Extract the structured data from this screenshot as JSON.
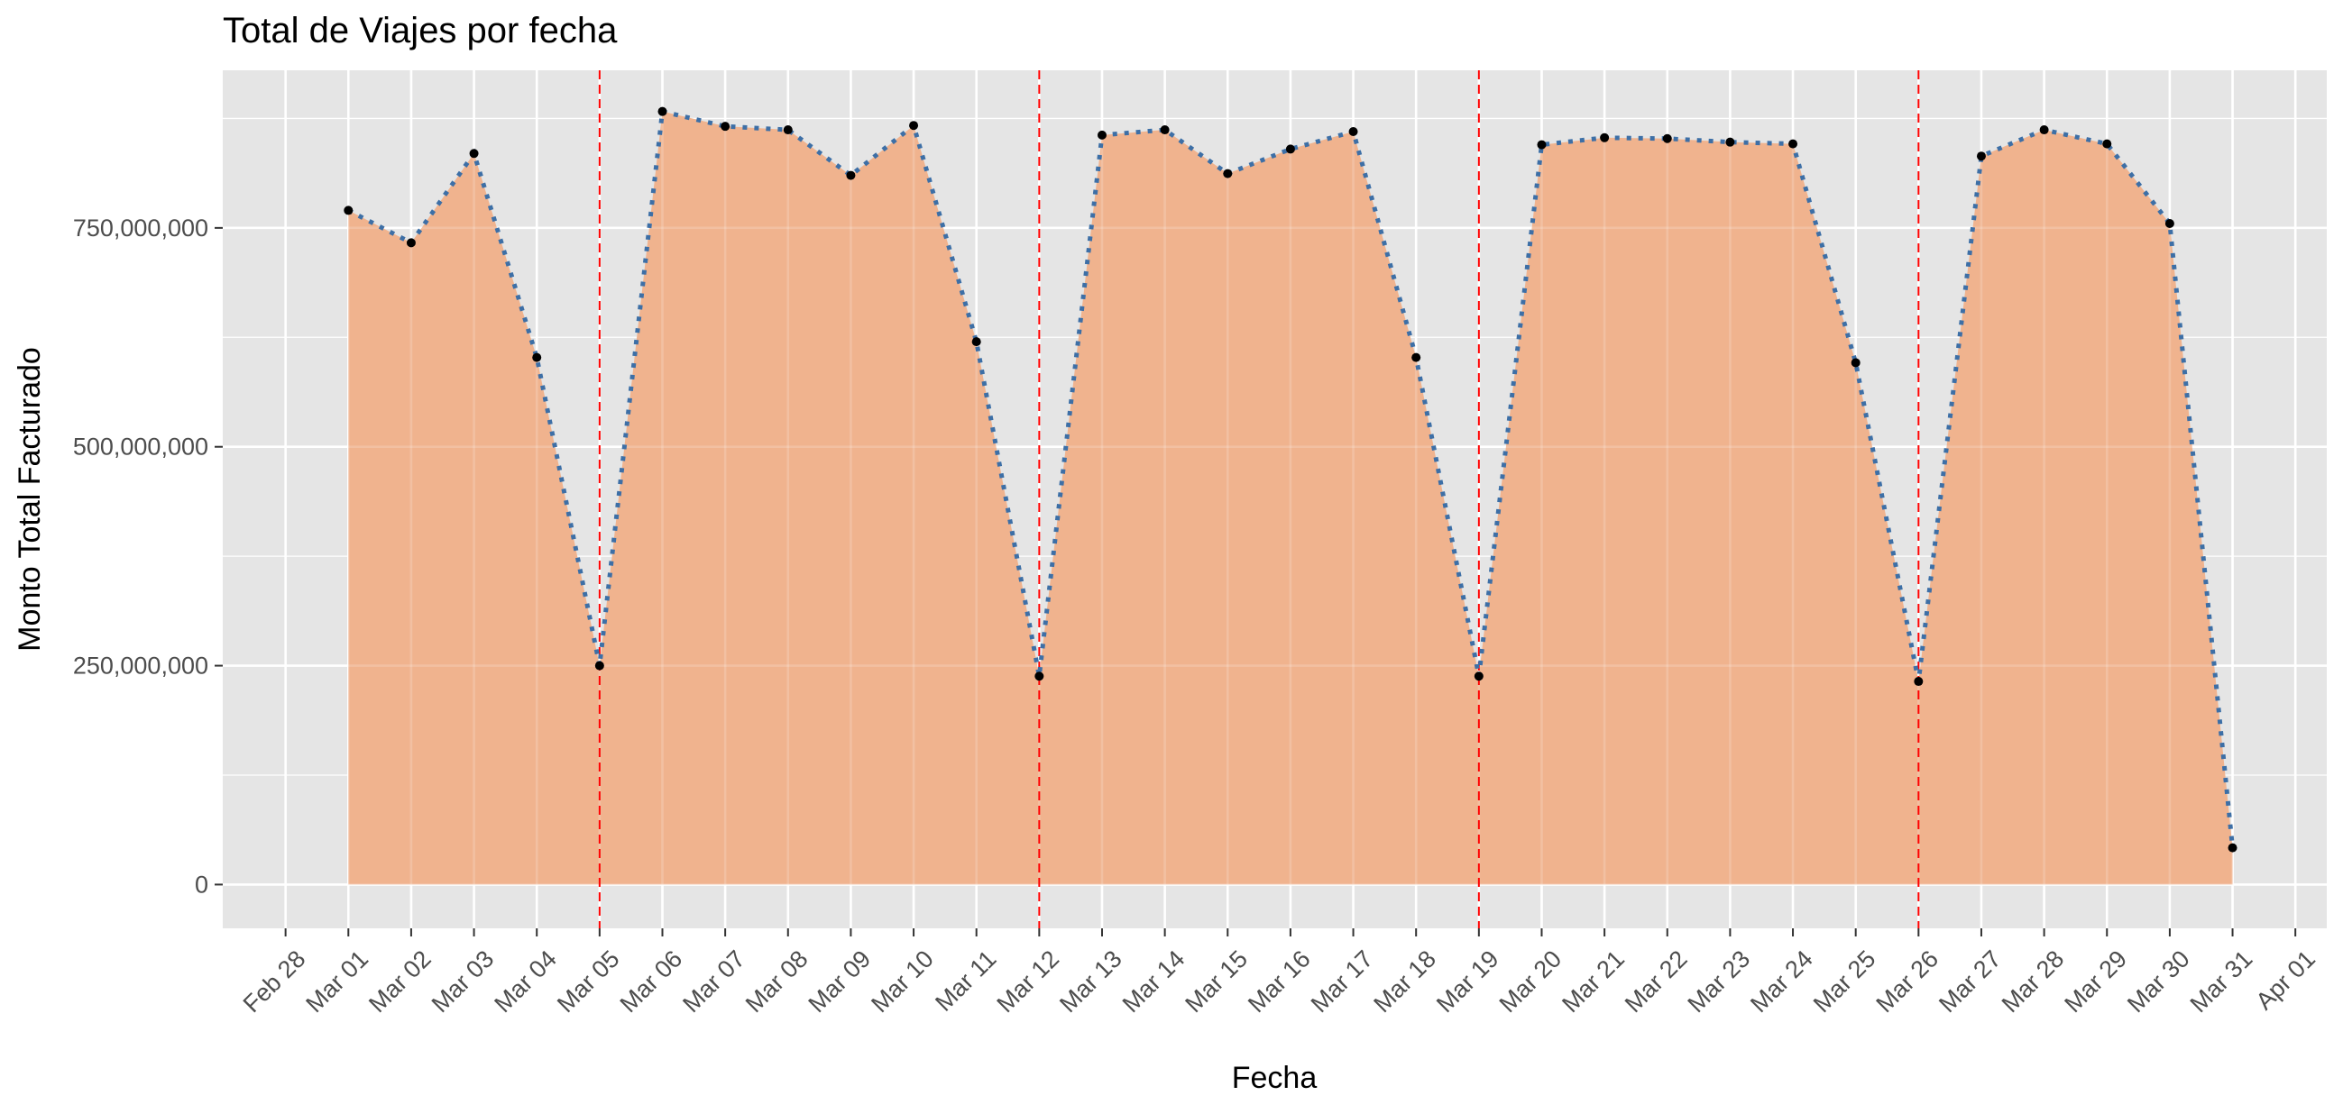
{
  "chart_data": {
    "type": "area",
    "title": "Total de Viajes por fecha",
    "xlabel": "Fecha",
    "ylabel": "Monto Total Facturado",
    "x_tick_labels": [
      "Feb 28",
      "Mar 01",
      "Mar 02",
      "Mar 03",
      "Mar 04",
      "Mar 05",
      "Mar 06",
      "Mar 07",
      "Mar 08",
      "Mar 09",
      "Mar 10",
      "Mar 11",
      "Mar 12",
      "Mar 13",
      "Mar 14",
      "Mar 15",
      "Mar 16",
      "Mar 17",
      "Mar 18",
      "Mar 19",
      "Mar 20",
      "Mar 21",
      "Mar 22",
      "Mar 23",
      "Mar 24",
      "Mar 25",
      "Mar 26",
      "Mar 27",
      "Mar 28",
      "Mar 29",
      "Mar 30",
      "Mar 31",
      "Apr 01"
    ],
    "x": [
      "Mar 01",
      "Mar 02",
      "Mar 03",
      "Mar 04",
      "Mar 05",
      "Mar 06",
      "Mar 07",
      "Mar 08",
      "Mar 09",
      "Mar 10",
      "Mar 11",
      "Mar 12",
      "Mar 13",
      "Mar 14",
      "Mar 15",
      "Mar 16",
      "Mar 17",
      "Mar 18",
      "Mar 19",
      "Mar 20",
      "Mar 21",
      "Mar 22",
      "Mar 23",
      "Mar 24",
      "Mar 25",
      "Mar 26",
      "Mar 27",
      "Mar 28",
      "Mar 29",
      "Mar 30",
      "Mar 31"
    ],
    "series": [
      {
        "values": [
          770000000,
          733000000,
          835000000,
          602000000,
          250000000,
          883000000,
          866000000,
          862000000,
          810000000,
          867000000,
          620000000,
          238000000,
          856000000,
          862000000,
          812000000,
          840000000,
          860000000,
          602000000,
          238000000,
          845000000,
          853000000,
          852000000,
          848000000,
          846000000,
          596000000,
          232000000,
          832000000,
          862000000,
          846000000,
          755000000,
          42000000
        ],
        "area_color": "#F0B38E",
        "line_color": "#3D6FA6",
        "point_color": "#000000"
      }
    ],
    "y_ticks": [
      0,
      250000000,
      500000000,
      750000000
    ],
    "y_tick_labels": [
      "0",
      "250,000,000",
      "500,000,000",
      "750,000,000"
    ],
    "ylim": [
      -50000000,
      930000000
    ],
    "x_range": [
      "Feb 27",
      "Apr 01"
    ],
    "vlines": {
      "dates": [
        "Mar 05",
        "Mar 12",
        "Mar 19",
        "Mar 26"
      ],
      "color": "#FF0000",
      "style": "dashed"
    },
    "grid": true,
    "panel_background": "#E5E5E5",
    "grid_color": "#FFFFFF"
  }
}
